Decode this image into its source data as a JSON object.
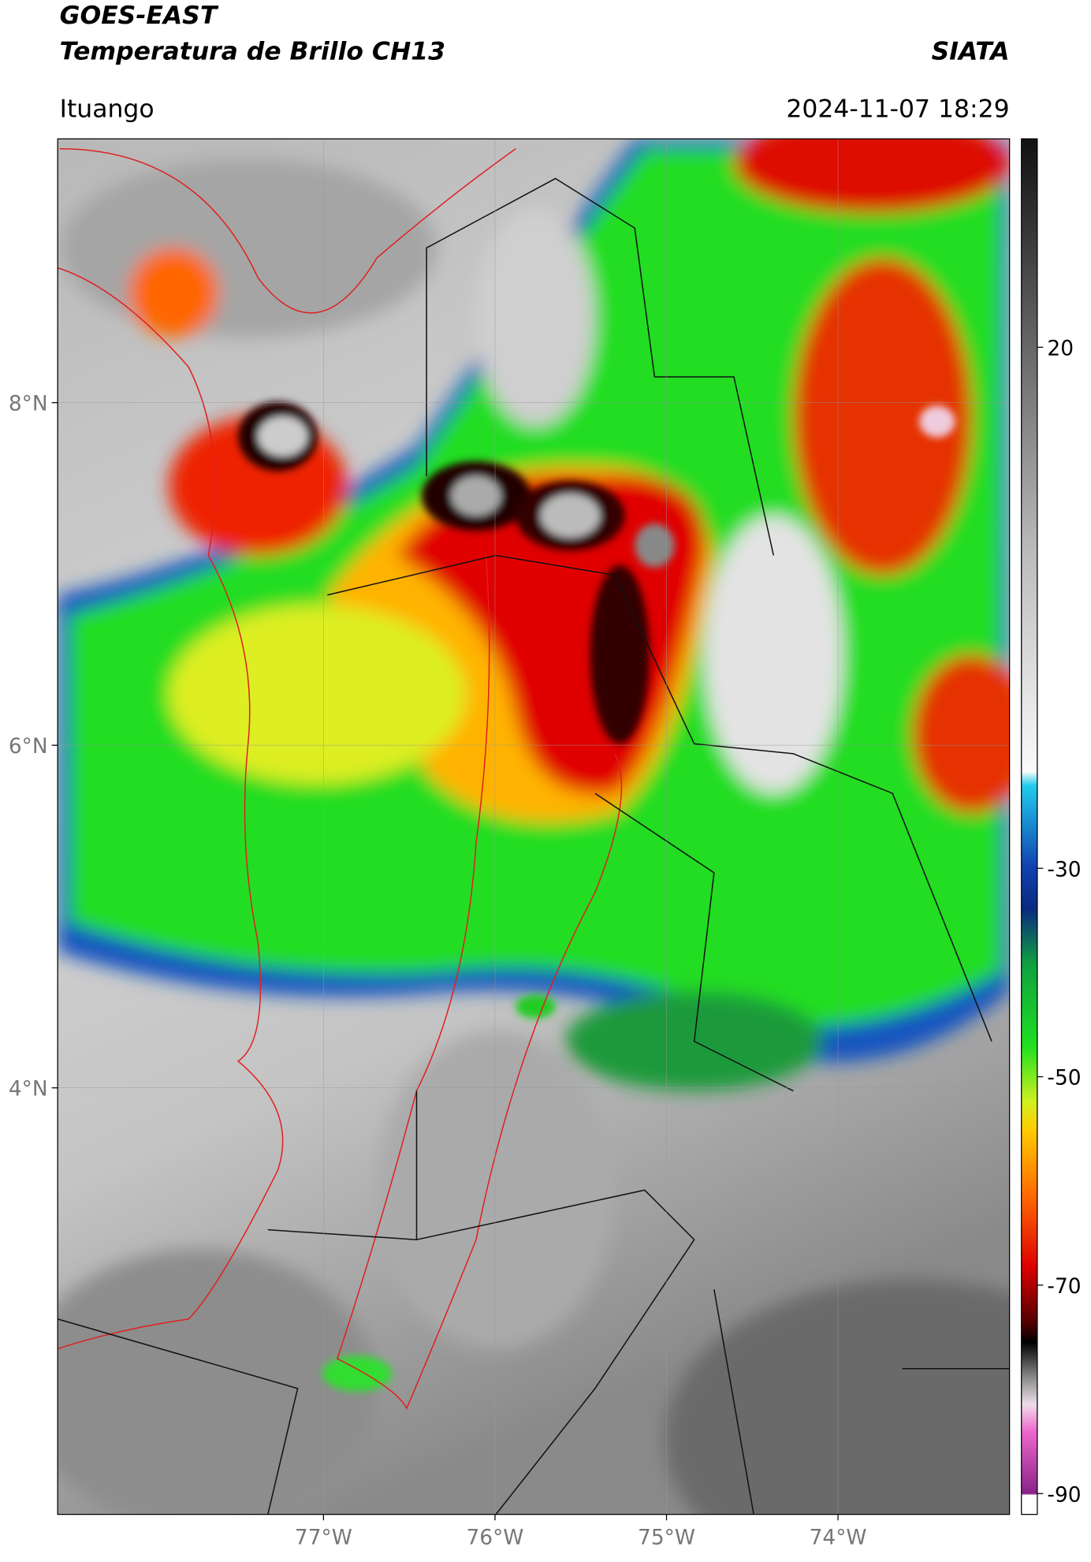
{
  "header": {
    "title": "GOES-EAST",
    "subtitle": "Temperatura de Brillo CH13",
    "brand": "SIATA",
    "location": "Ituango",
    "datetime": "2024-11-07 18:29"
  },
  "map": {
    "lonlim": [
      -78.55,
      -73.0
    ],
    "latlim": [
      1.51,
      9.54
    ],
    "lon_ticks": [
      {
        "value": -77,
        "label": "77°W"
      },
      {
        "value": -76,
        "label": "76°W"
      },
      {
        "value": -75,
        "label": "75°W"
      },
      {
        "value": -74,
        "label": "74°W"
      }
    ],
    "lat_ticks": [
      {
        "value": 8,
        "label": "8°N"
      },
      {
        "value": 6,
        "label": "6°N"
      },
      {
        "value": 4,
        "label": "4°N"
      }
    ],
    "grid": true
  },
  "colorbar": {
    "lim": [
      -92,
      40
    ],
    "ticks": [
      20,
      -30,
      -50,
      -70,
      -90
    ]
  }
}
